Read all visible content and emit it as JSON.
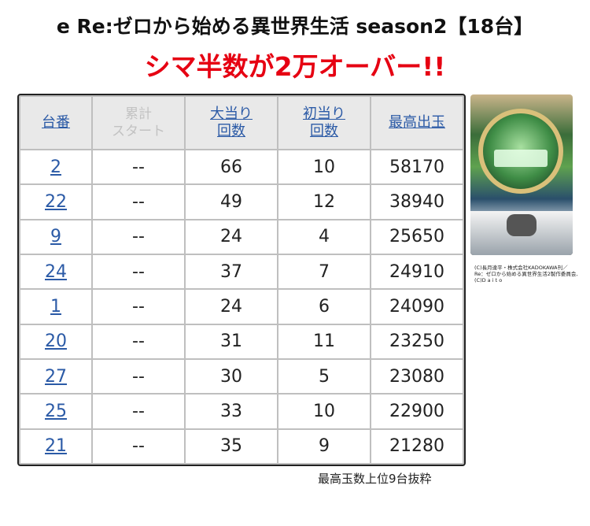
{
  "header": {
    "title": "e Re:ゼロから始める異世界生活 season2【18台】",
    "subtitle": "シマ半数が2万オーバー!!"
  },
  "table": {
    "headers": {
      "unit": "台番",
      "cumulative_start": [
        "累計",
        "スタート"
      ],
      "big_hits": [
        "大当り",
        "回数"
      ],
      "first_hits": [
        "初当り",
        "回数"
      ],
      "max_payout": "最高出玉"
    },
    "rows": [
      {
        "unit": "2",
        "start": "--",
        "big_hits": "66",
        "first_hits": "10",
        "max_payout": "58170"
      },
      {
        "unit": "22",
        "start": "--",
        "big_hits": "49",
        "first_hits": "12",
        "max_payout": "38940"
      },
      {
        "unit": "9",
        "start": "--",
        "big_hits": "24",
        "first_hits": "4",
        "max_payout": "25650"
      },
      {
        "unit": "24",
        "start": "--",
        "big_hits": "37",
        "first_hits": "7",
        "max_payout": "24910"
      },
      {
        "unit": "1",
        "start": "--",
        "big_hits": "24",
        "first_hits": "6",
        "max_payout": "24090"
      },
      {
        "unit": "20",
        "start": "--",
        "big_hits": "31",
        "first_hits": "11",
        "max_payout": "23250"
      },
      {
        "unit": "27",
        "start": "--",
        "big_hits": "30",
        "first_hits": "5",
        "max_payout": "23080"
      },
      {
        "unit": "25",
        "start": "--",
        "big_hits": "33",
        "first_hits": "10",
        "max_payout": "22900"
      },
      {
        "unit": "21",
        "start": "--",
        "big_hits": "35",
        "first_hits": "9",
        "max_payout": "21280"
      }
    ]
  },
  "image": {
    "copyright": [
      "(C)長月達平・株式会社KADOKAWA刊／",
      "Re：ゼロから始める異世界生活2製作委員会,",
      "(C)D a i t o"
    ]
  },
  "footnote": "最高玉数上位9台抜粋",
  "colors": {
    "title": "#111111",
    "subtitle": "#e60012",
    "link": "#2b5aa6",
    "muted_header": "#c2c2c2",
    "header_bg": "#e9e9e9",
    "grid": "#bfbfbf"
  }
}
